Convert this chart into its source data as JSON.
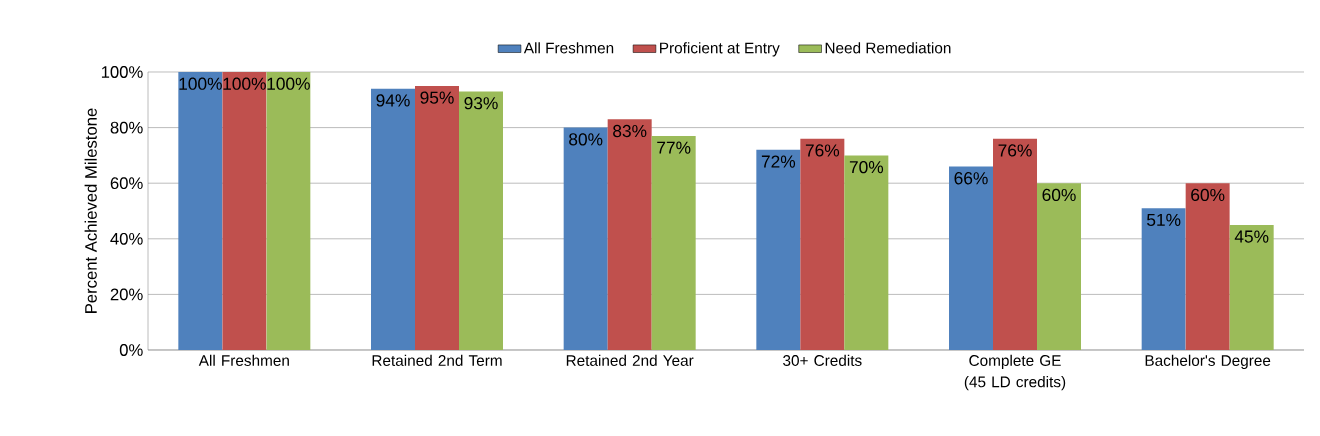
{
  "chart_data": {
    "type": "bar",
    "ylabel": "Percent Achieved  Milestone",
    "categories": [
      "All Freshmen",
      "Retained 2nd Term",
      "Retained 2nd Year",
      "30+ Credits",
      "Complete GE (45 LD credits)",
      "Bachelor's Degree"
    ],
    "series": [
      {
        "name": "All Freshmen",
        "color": "#4f81bd",
        "values": [
          100,
          94,
          80,
          72,
          66,
          51
        ],
        "value_labels": [
          "100%",
          "94%",
          "80%",
          "72%",
          "66%",
          "51%"
        ]
      },
      {
        "name": "Proficient at Entry",
        "color": "#c0504d",
        "values": [
          100,
          95,
          83,
          76,
          76,
          60
        ],
        "value_labels": [
          "100%",
          "95%",
          "83%",
          "76%",
          "76%",
          "60%"
        ]
      },
      {
        "name": "Need Remediation",
        "color": "#9bbb59",
        "values": [
          100,
          93,
          77,
          70,
          60,
          45
        ],
        "value_labels": [
          "100%",
          "93%",
          "77%",
          "70%",
          "60%",
          "45%"
        ]
      }
    ],
    "ylim": [
      0,
      100
    ],
    "yticks": [
      {
        "value": 0,
        "label": "0%"
      },
      {
        "value": 20,
        "label": "20%"
      },
      {
        "value": 40,
        "label": "40%"
      },
      {
        "value": 60,
        "label": "60%"
      },
      {
        "value": 80,
        "label": "80%"
      },
      {
        "value": 100,
        "label": "100%"
      }
    ],
    "grid": "y",
    "legend": "top"
  }
}
